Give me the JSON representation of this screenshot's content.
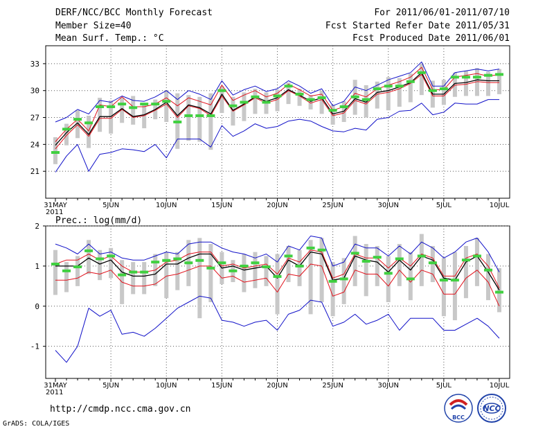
{
  "header": {
    "title": "DERF/NCC/BCC Monthly Forecast",
    "member_size": "Member Size=40",
    "variable": "Mean Surf. Temp.: °C",
    "period": "For 2011/06/01-2011/07/10",
    "start_date": "Fcst Started Refer Date 2011/05/31",
    "produced_date": "Fcst Produced Date 2011/06/01"
  },
  "footer": {
    "url": "http://cmdp.ncc.cma.gov.cn",
    "credit": "GrADS: COLA/IGES",
    "logo_bcc": "BCC",
    "logo_ncc": "NCC"
  },
  "colors": {
    "max_min": "#1010c8",
    "upper_lower": "#e0101a",
    "mean": "#000000",
    "median": "#40d040",
    "spread": "#c8c8c8",
    "grid": "#555555"
  },
  "chart_data": [
    {
      "type": "line",
      "title": "Mean Surf. Temp.: °C",
      "x_tick_labels": [
        "31MAY",
        "5JUN",
        "10JUN",
        "15JUN",
        "20JUN",
        "25JUN",
        "30JUN",
        "5JUL",
        "10JUL"
      ],
      "x_year_label": "2011",
      "ylim": [
        18,
        35
      ],
      "yticks": [
        21,
        24,
        27,
        30,
        33
      ],
      "series": [
        {
          "name": "max",
          "values": [
            26.5,
            27,
            27.9,
            27.4,
            28.9,
            28.7,
            29.4,
            28.9,
            28.8,
            29.3,
            30,
            29,
            30,
            29.6,
            29,
            31.1,
            29.5,
            30.1,
            30.5,
            29.9,
            30.2,
            31.1,
            30.5,
            29.7,
            30.2,
            28.3,
            28.8,
            30.4,
            30,
            30.6,
            31.2,
            31.6,
            32,
            33.2,
            30.5,
            30.5,
            32,
            32.2,
            32.4,
            32.2,
            32.4
          ]
        },
        {
          "name": "upper",
          "values": [
            24.3,
            25.7,
            26.8,
            25.5,
            28.4,
            28.2,
            29.3,
            28.2,
            28.2,
            28.5,
            29.2,
            28.3,
            29.2,
            28.8,
            28.4,
            30.6,
            28.9,
            29.5,
            30,
            29.3,
            29.7,
            30.7,
            30.1,
            29.4,
            29.6,
            27.8,
            28.2,
            29.7,
            29.3,
            30.2,
            30.6,
            31,
            31.5,
            32.6,
            30.1,
            30.1,
            31.5,
            31.7,
            31.9,
            31.6,
            31.8
          ]
        },
        {
          "name": "mean",
          "values": [
            23.9,
            25.3,
            26.4,
            25.1,
            27.1,
            27.1,
            28,
            27.1,
            27.3,
            27.9,
            28.7,
            27.2,
            28.4,
            28.1,
            27.4,
            29.6,
            27.8,
            28.5,
            29.3,
            28.8,
            29.2,
            30.1,
            29.5,
            28.8,
            29.2,
            27.4,
            27.7,
            29.1,
            28.7,
            29.8,
            30,
            30.4,
            30.9,
            32,
            29.6,
            29.6,
            30.8,
            30.9,
            31.2,
            31.1,
            31.1
          ]
        },
        {
          "name": "lower",
          "values": [
            23.5,
            25,
            26.2,
            24.9,
            26.9,
            26.9,
            27.9,
            27,
            27.2,
            27.8,
            28.5,
            27,
            28.3,
            28,
            27.2,
            29.4,
            27.7,
            28.4,
            29.2,
            28.6,
            29,
            30,
            29.4,
            28.6,
            29,
            27.2,
            27.5,
            28.9,
            28.5,
            29.6,
            29.8,
            30.2,
            30.8,
            31.8,
            29.4,
            29.4,
            30.6,
            30.7,
            31,
            30.9,
            30.9
          ]
        },
        {
          "name": "min",
          "values": [
            20.9,
            22.7,
            24,
            21,
            22.9,
            23.1,
            23.5,
            23.4,
            23.2,
            24,
            22.5,
            24.6,
            24.6,
            24.6,
            23.7,
            26.1,
            24.9,
            25.5,
            26.3,
            25.8,
            26,
            26.6,
            26.8,
            26.6,
            26,
            25.5,
            25.4,
            25.8,
            25.6,
            26.8,
            27,
            27.7,
            27.8,
            28.6,
            27.3,
            27.6,
            28.6,
            28.5,
            28.5,
            29,
            29
          ]
        },
        {
          "name": "median",
          "values": [
            23.1,
            25.7,
            26.8,
            26.4,
            28.2,
            28.2,
            28.5,
            28.1,
            28.5,
            28.5,
            28.8,
            26.5,
            27.2,
            27.2,
            27.2,
            30,
            28.3,
            28.7,
            29.3,
            28.7,
            29.4,
            30.5,
            29.6,
            29,
            29.2,
            27.8,
            28.2,
            29.3,
            29,
            30.2,
            30.5,
            30.5,
            31,
            32,
            30,
            30.2,
            31.5,
            31.5,
            31.5,
            31.7,
            31.8
          ]
        },
        {
          "name": "spread_low",
          "values": [
            21.8,
            23.9,
            24.7,
            23.6,
            25.4,
            25.2,
            26.4,
            26.2,
            25.8,
            26.8,
            26.5,
            23.5,
            24.4,
            24.3,
            23.4,
            27.5,
            26.1,
            26.6,
            27.4,
            27.4,
            27.7,
            28.5,
            28.3,
            27.9,
            27.4,
            26.2,
            26.5,
            27.3,
            27,
            28,
            27.8,
            28.2,
            28.7,
            29.5,
            28.1,
            28.4,
            29.3,
            29.4,
            29.4,
            29.4,
            29.6
          ]
        },
        {
          "name": "spread_high",
          "values": [
            24.8,
            26.3,
            27.8,
            27.2,
            29.2,
            28.9,
            29.2,
            29.4,
            28.6,
            29,
            30,
            29.7,
            29.5,
            29.3,
            29.7,
            30.5,
            29.3,
            29.8,
            30.2,
            29.8,
            30.1,
            30.9,
            30.2,
            29.5,
            30,
            28.4,
            28.8,
            31.2,
            30.6,
            31,
            31.5,
            31.4,
            31.9,
            33,
            31.1,
            31.2,
            32,
            32.2,
            32.5,
            32.1,
            32.4
          ]
        }
      ]
    },
    {
      "type": "line",
      "title": "Prec.: log(mm/d)",
      "x_tick_labels": [
        "31MAY",
        "5JUN",
        "10JUN",
        "15JUN",
        "20JUN",
        "25JUN",
        "30JUN",
        "5JUL",
        "10JUL"
      ],
      "x_year_label": "2011",
      "ylim": [
        -1.8,
        2.0
      ],
      "yticks": [
        -1,
        0,
        1,
        2
      ],
      "series": [
        {
          "name": "max",
          "values": [
            1.55,
            1.45,
            1.3,
            1.55,
            1.3,
            1.35,
            1.2,
            1.15,
            1.15,
            1.25,
            1.35,
            1.3,
            1.55,
            1.6,
            1.6,
            1.45,
            1.35,
            1.3,
            1.2,
            1.3,
            1.1,
            1.5,
            1.4,
            1.75,
            1.7,
            1,
            1.1,
            1.55,
            1.45,
            1.45,
            1.25,
            1.5,
            1.3,
            1.6,
            1.45,
            1.2,
            1.35,
            1.6,
            1.7,
            1.35,
            0.85
          ]
        },
        {
          "name": "upper",
          "values": [
            1.05,
            1.15,
            1.15,
            1.3,
            1.15,
            1.25,
            1,
            0.85,
            0.85,
            0.9,
            1.1,
            1.15,
            1.3,
            1.35,
            1.35,
            1,
            1.05,
            0.95,
            1,
            1.05,
            0.8,
            1.2,
            1.1,
            1.4,
            1.35,
            0.7,
            0.8,
            1.3,
            1.2,
            1.2,
            0.95,
            1.2,
            1,
            1.3,
            1.2,
            0.75,
            0.75,
            1.2,
            1.3,
            1,
            0.45
          ]
        },
        {
          "name": "mean",
          "values": [
            1,
            1,
            1,
            1.2,
            1.05,
            1.15,
            0.85,
            0.75,
            0.75,
            0.8,
            1.05,
            1.05,
            1.2,
            1.3,
            1.3,
            0.95,
            1,
            0.9,
            0.95,
            1,
            0.7,
            1.15,
            1,
            1.35,
            1.3,
            0.65,
            0.7,
            1.25,
            1.15,
            1.1,
            0.85,
            1.15,
            0.9,
            1.25,
            1.15,
            0.7,
            0.65,
            1.1,
            1.25,
            0.85,
            0.4
          ]
        },
        {
          "name": "lower",
          "values": [
            0.65,
            0.65,
            0.7,
            0.85,
            0.8,
            0.9,
            0.6,
            0.5,
            0.5,
            0.55,
            0.75,
            0.8,
            0.9,
            1,
            1,
            0.7,
            0.75,
            0.6,
            0.65,
            0.7,
            0.35,
            0.8,
            0.75,
            1.05,
            1,
            0.25,
            0.35,
            0.9,
            0.8,
            0.8,
            0.5,
            0.9,
            0.6,
            0.9,
            0.8,
            0.3,
            0.3,
            0.7,
            0.9,
            0.6,
            0
          ]
        },
        {
          "name": "min",
          "values": [
            -1.1,
            -1.4,
            -1,
            -0.05,
            -0.25,
            -0.1,
            -0.7,
            -0.65,
            -0.75,
            -0.55,
            -0.3,
            -0.05,
            0.1,
            0.25,
            0.2,
            -0.35,
            -0.4,
            -0.5,
            -0.4,
            -0.35,
            -0.6,
            -0.2,
            -0.1,
            0.15,
            0.1,
            -0.5,
            -0.4,
            -0.2,
            -0.45,
            -0.35,
            -0.2,
            -0.6,
            -0.3,
            -0.3,
            -0.3,
            -0.6,
            -0.6,
            -0.45,
            -0.3,
            -0.5,
            -0.8
          ]
        },
        {
          "name": "median",
          "values": [
            1.05,
            0.88,
            0.98,
            1.38,
            1.18,
            1.25,
            0.78,
            0.85,
            0.85,
            1.1,
            1.14,
            1.18,
            1.08,
            1.14,
            0.95,
            1.08,
            0.88,
            1,
            1.08,
            0.98,
            0.74,
            1.25,
            1,
            1.45,
            1.4,
            0.62,
            0.68,
            1.32,
            1.12,
            1.22,
            0.82,
            1.18,
            0.68,
            1.25,
            1.08,
            0.65,
            0.65,
            1.15,
            1.25,
            0.9,
            0.35
          ]
        },
        {
          "name": "spread_low",
          "values": [
            0.28,
            0.35,
            0.5,
            0.8,
            0.65,
            0.7,
            0.05,
            0.3,
            0.3,
            0.5,
            0.2,
            0.4,
            0.5,
            -0.3,
            0.1,
            0.55,
            0.6,
            0.35,
            0.45,
            0.5,
            -0.2,
            0.6,
            0.5,
            -0.2,
            0.1,
            -0.25,
            0.05,
            0.5,
            0.25,
            0.5,
            0.1,
            0.5,
            0.15,
            0.5,
            0.6,
            -0.25,
            -0.35,
            0.2,
            0.5,
            0.15,
            -0.15
          ]
        },
        {
          "name": "spread_high",
          "values": [
            1.4,
            1.1,
            1.25,
            1.65,
            1.4,
            1.45,
            1.15,
            1.1,
            1.1,
            1.3,
            1.35,
            1.35,
            1.65,
            1.7,
            1.55,
            1.35,
            1.15,
            1.3,
            1.35,
            1.25,
            1.3,
            1.5,
            1.4,
            1.65,
            1.7,
            1.1,
            1.2,
            1.75,
            1.55,
            1.5,
            1.25,
            1.55,
            1.35,
            1.8,
            1.5,
            1.2,
            1.35,
            1.5,
            1.7,
            1.3,
            0.95
          ]
        }
      ]
    }
  ]
}
